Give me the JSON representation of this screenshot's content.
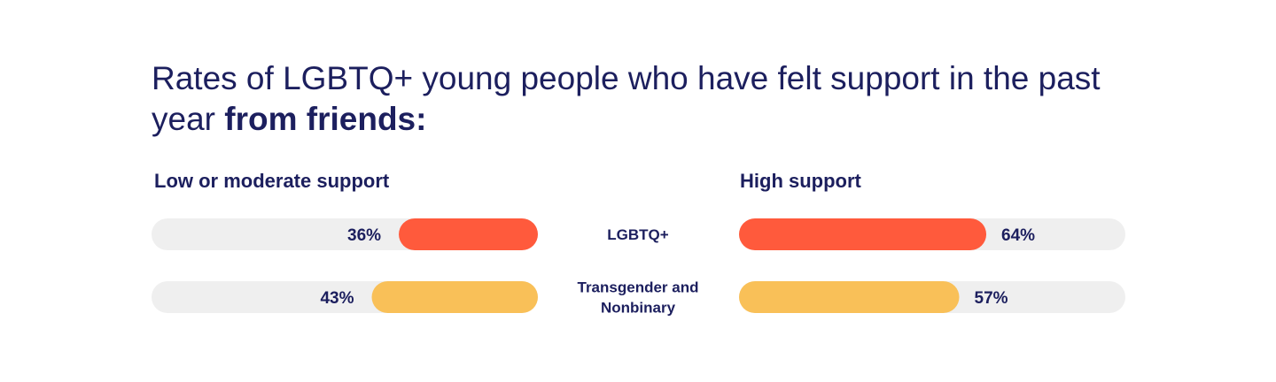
{
  "chart_data": {
    "type": "bar",
    "title_parts": [
      "Rates of LGBTQ+ young people who have felt support in the past year ",
      "from friends:"
    ],
    "categories": [
      "LGBTQ+",
      "Transgender and Nonbinary"
    ],
    "series": [
      {
        "name": "Low or moderate support",
        "values": [
          36,
          43
        ],
        "labels": [
          "36%",
          "43%"
        ]
      },
      {
        "name": "High support",
        "values": [
          64,
          57
        ],
        "labels": [
          "64%",
          "57%"
        ]
      }
    ],
    "ylim": [
      0,
      100
    ],
    "colors": [
      "#ff5a3c",
      "#f9c058"
    ],
    "track_color": "#efefef",
    "legend": "column-headers"
  }
}
